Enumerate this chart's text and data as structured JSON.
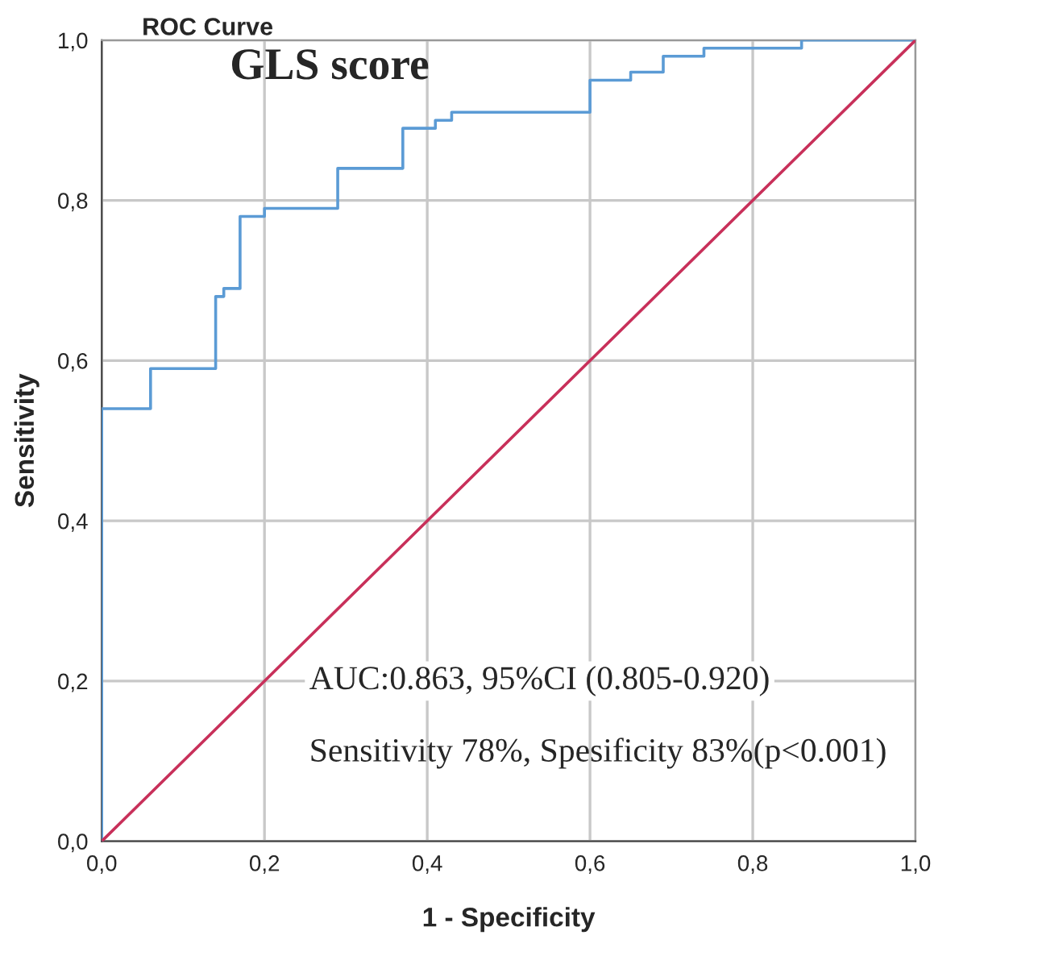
{
  "chart_data": {
    "type": "line",
    "title": "ROC Curve",
    "subtitle": "GLS score",
    "xlabel": "1 - Specificity",
    "ylabel": "Sensitivity",
    "series": [
      {
        "color": "#5b9bd5",
        "x": [
          0,
          0,
          0.06,
          0.06,
          0.14,
          0.14,
          0.15,
          0.15,
          0.17,
          0.17,
          0.2,
          0.2,
          0.29,
          0.29,
          0.37,
          0.37,
          0.41,
          0.41,
          0.43,
          0.43,
          0.6,
          0.6,
          0.65,
          0.65,
          0.69,
          0.69,
          0.74,
          0.74,
          0.86,
          0.86,
          1.0
        ],
        "values": [
          0,
          0.54,
          0.54,
          0.59,
          0.59,
          0.68,
          0.68,
          0.69,
          0.69,
          0.78,
          0.78,
          0.79,
          0.79,
          0.84,
          0.84,
          0.89,
          0.89,
          0.9,
          0.9,
          0.91,
          0.91,
          0.95,
          0.95,
          0.96,
          0.96,
          0.98,
          0.98,
          0.99,
          0.99,
          1.0,
          1.0
        ]
      },
      {
        "color": "#c8305a",
        "x": [
          0,
          1.0
        ],
        "values": [
          0,
          1.0
        ]
      }
    ],
    "xlim": [
      0,
      1.0
    ],
    "ylim": [
      0,
      1.0
    ],
    "xticks": [
      {
        "value": 0,
        "label": "0,0"
      },
      {
        "value": 0.2,
        "label": "0,2"
      },
      {
        "value": 0.4,
        "label": "0,4"
      },
      {
        "value": 0.6,
        "label": "0,6"
      },
      {
        "value": 0.8,
        "label": "0,8"
      },
      {
        "value": 1.0,
        "label": "1,0"
      }
    ],
    "yticks": [
      {
        "value": 0,
        "label": "0,0"
      },
      {
        "value": 0.2,
        "label": "0,2"
      },
      {
        "value": 0.4,
        "label": "0,4"
      },
      {
        "value": 0.6,
        "label": "0,6"
      },
      {
        "value": 0.8,
        "label": "0,8"
      },
      {
        "value": 1.0,
        "label": "1,0"
      }
    ],
    "grid": true,
    "annotations": [
      "AUC:0.863, 95%CI (0.805-0.920)",
      "Sensitivity 78%, Spesificity 83%(p<0.001)"
    ]
  }
}
